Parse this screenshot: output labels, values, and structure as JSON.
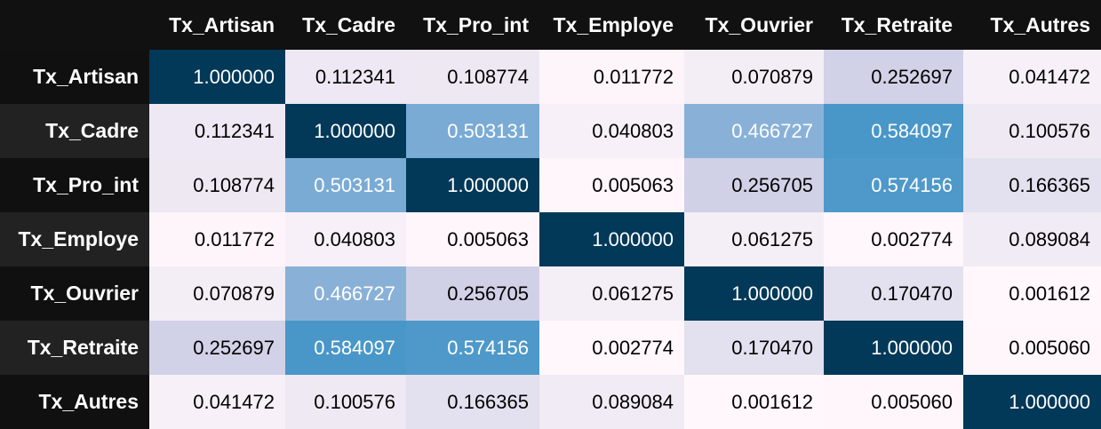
{
  "chart_data": {
    "type": "heatmap",
    "columns": [
      "Tx_Artisan",
      "Tx_Cadre",
      "Tx_Pro_int",
      "Tx_Employe",
      "Tx_Ouvrier",
      "Tx_Retraite",
      "Tx_Autres"
    ],
    "rows": [
      {
        "label": "Tx_Artisan",
        "values": [
          "1.000000",
          "0.112341",
          "0.108774",
          "0.011772",
          "0.070879",
          "0.252697",
          "0.041472"
        ]
      },
      {
        "label": "Tx_Cadre",
        "values": [
          "0.112341",
          "1.000000",
          "0.503131",
          "0.040803",
          "0.466727",
          "0.584097",
          "0.100576"
        ]
      },
      {
        "label": "Tx_Pro_int",
        "values": [
          "0.108774",
          "0.503131",
          "1.000000",
          "0.005063",
          "0.256705",
          "0.574156",
          "0.166365"
        ]
      },
      {
        "label": "Tx_Employe",
        "values": [
          "0.011772",
          "0.040803",
          "0.005063",
          "1.000000",
          "0.061275",
          "0.002774",
          "0.089084"
        ]
      },
      {
        "label": "Tx_Ouvrier",
        "values": [
          "0.070879",
          "0.466727",
          "0.256705",
          "0.061275",
          "1.000000",
          "0.170470",
          "0.001612"
        ]
      },
      {
        "label": "Tx_Retraite",
        "values": [
          "0.252697",
          "0.584097",
          "0.574156",
          "0.002774",
          "0.170470",
          "1.000000",
          "0.005060"
        ]
      },
      {
        "label": "Tx_Autres",
        "values": [
          "0.041472",
          "0.100576",
          "0.166365",
          "0.089084",
          "0.001612",
          "0.005060",
          "1.000000"
        ]
      }
    ],
    "color_scale": {
      "min": 0.0,
      "max": 1.0,
      "stops": [
        [
          0.0,
          "#fff7fb"
        ],
        [
          0.05,
          "#f6eff7"
        ],
        [
          0.12,
          "#ece7f2"
        ],
        [
          0.18,
          "#e1dfee"
        ],
        [
          0.26,
          "#cfd0e6"
        ],
        [
          0.45,
          "#8fb4d9"
        ],
        [
          0.5,
          "#7cacd5"
        ],
        [
          0.58,
          "#4a98c9"
        ],
        [
          1.0,
          "#023858"
        ]
      ],
      "light_text_threshold": 0.45
    }
  }
}
